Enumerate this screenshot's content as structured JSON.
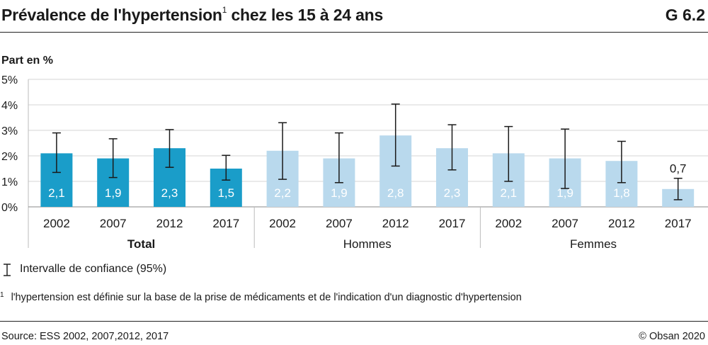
{
  "header": {
    "title_main": "Prévalence de l'hypertension",
    "title_sup": "1",
    "title_rest": " chez les 15 à 24 ans",
    "graph_code": "G 6.2"
  },
  "chart_data": {
    "type": "bar",
    "ylabel": "Part en %",
    "yticks": [
      "0%",
      "1%",
      "2%",
      "3%",
      "4%",
      "5%"
    ],
    "ylim": [
      0,
      5
    ],
    "groups": [
      {
        "name": "Total",
        "bold": true,
        "color": "#1a9dc9",
        "categories": [
          "2002",
          "2007",
          "2012",
          "2017"
        ],
        "values": [
          2.1,
          1.9,
          2.3,
          1.5
        ],
        "labels": [
          "2,1",
          "1,9",
          "2,3",
          "1,5"
        ],
        "ci_low": [
          1.35,
          1.15,
          1.55,
          1.05
        ],
        "ci_high": [
          2.9,
          2.67,
          3.03,
          2.02
        ]
      },
      {
        "name": "Hommes",
        "bold": false,
        "color": "#b9d9ed",
        "categories": [
          "2002",
          "2007",
          "2012",
          "2017"
        ],
        "values": [
          2.2,
          1.9,
          2.8,
          2.3
        ],
        "labels": [
          "2,2",
          "1,9",
          "2,8",
          "2,3"
        ],
        "ci_low": [
          1.08,
          0.95,
          1.6,
          1.45
        ],
        "ci_high": [
          3.3,
          2.9,
          4.03,
          3.22
        ]
      },
      {
        "name": "Femmes",
        "bold": false,
        "color": "#b9d9ed",
        "categories": [
          "2002",
          "2007",
          "2012",
          "2017"
        ],
        "values": [
          2.1,
          1.9,
          1.8,
          0.7
        ],
        "labels": [
          "2,1",
          "1,9",
          "1,8",
          "0,7"
        ],
        "ci_low": [
          1.0,
          0.72,
          0.95,
          0.28
        ],
        "ci_high": [
          3.15,
          3.05,
          2.57,
          1.12
        ]
      }
    ]
  },
  "legend": {
    "ci_label": "Intervalle de confiance (95%)"
  },
  "footnote": {
    "mark": "1",
    "text": "l'hypertension est définie sur la base de la prise de médicaments et de l'indication d'un diagnostic d'hypertension"
  },
  "footer": {
    "source": "Source: ESS 2002, 2007,2012, 2017",
    "copyright": "© Obsan 2020"
  }
}
